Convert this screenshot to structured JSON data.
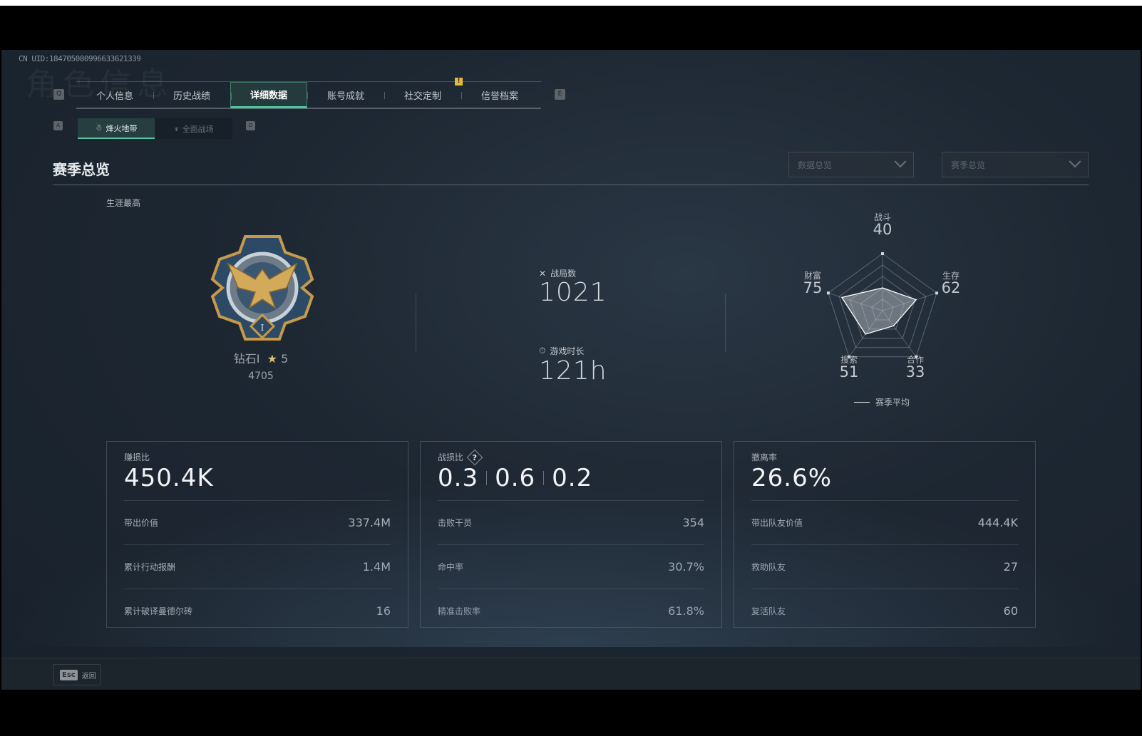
{
  "header": {
    "uid": "CN UID:1847050809966336213​39",
    "watermark": "角色信息"
  },
  "tabs": {
    "prev_key": "Q",
    "next_key": "E",
    "items": [
      {
        "label": "个人信息"
      },
      {
        "label": "历史战绩"
      },
      {
        "label": "详细数据",
        "active": true
      },
      {
        "label": "账号成就"
      },
      {
        "label": "社交定制",
        "badge": "!"
      },
      {
        "label": "信誉档案"
      }
    ]
  },
  "subtabs": {
    "prev_key": "A",
    "next_key": "D",
    "items": [
      {
        "label": "烽火地带",
        "icon": "helmet-icon",
        "active": true
      },
      {
        "label": "全面战场",
        "icon": "wings-icon"
      }
    ]
  },
  "section": {
    "title": "赛季总览",
    "dropdowns": [
      {
        "value": "数据总览"
      },
      {
        "value": "赛季总览"
      }
    ]
  },
  "career": {
    "label": "生涯最高",
    "rank": "钻石I",
    "stars": "5",
    "score": "4705"
  },
  "summary": {
    "matches_label": "战局数",
    "matches": "1021",
    "playtime_label": "游戏时长",
    "playtime": "121h"
  },
  "radar": {
    "axes": [
      {
        "label": "战斗",
        "value": 40
      },
      {
        "label": "生存",
        "value": 62
      },
      {
        "label": "合作",
        "value": 33
      },
      {
        "label": "搜索",
        "value": 51
      },
      {
        "label": "财富",
        "value": 75
      }
    ],
    "max": 100,
    "legend": "赛季平均"
  },
  "cards": [
    {
      "label": "赚损比",
      "big": [
        "450.4K"
      ],
      "rows": [
        {
          "k": "带出价值",
          "v": "337.4M"
        },
        {
          "k": "累计行动报酬",
          "v": "1.4M"
        },
        {
          "k": "累计破译曼德尔砖",
          "v": "16"
        }
      ]
    },
    {
      "label": "战损比",
      "help": "?",
      "big": [
        "0.3",
        "0.6",
        "0.2"
      ],
      "rows": [
        {
          "k": "击败干员",
          "v": "354"
        },
        {
          "k": "命中率",
          "v": "30.7%"
        },
        {
          "k": "精准击败率",
          "v": "61.8%"
        }
      ]
    },
    {
      "label": "撤离率",
      "big": [
        "26.6%"
      ],
      "rows": [
        {
          "k": "带出队友价值",
          "v": "444.4K"
        },
        {
          "k": "救助队友",
          "v": "27"
        },
        {
          "k": "复活队友",
          "v": "60"
        }
      ]
    }
  ],
  "footer": {
    "key": "Esc",
    "label": "返回"
  },
  "colors": {
    "accent": "#4fc6a0",
    "badge": "#e8b93a",
    "background": "#1d2732"
  }
}
